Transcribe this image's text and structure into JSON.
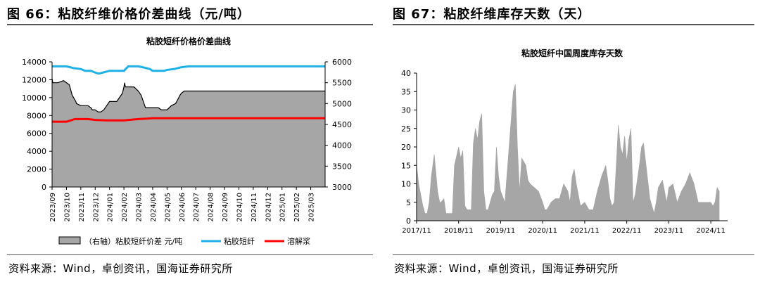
{
  "figures": [
    {
      "title": "图 66：粘胶纤维价格价差曲线（元/吨）",
      "source": "资料来源：Wind，卓创资讯，国海证券研究所"
    },
    {
      "title": "图 67：粘胶纤维库存天数（天）",
      "source": "资料来源：Wind，卓创资讯，国海证券研究所"
    }
  ],
  "chart_data": [
    {
      "type": "area",
      "title": "粘胶短纤价格价差曲线",
      "xlabel": "",
      "ylabel": "",
      "categories": [
        "2023/09",
        "2023/10",
        "2023/11",
        "2023/12",
        "2024/01",
        "2024/02",
        "2024/03",
        "2024/04",
        "2024/05",
        "2024/06",
        "2024/07",
        "2024/08",
        "2024/09",
        "2024/10",
        "2024/11",
        "2024/12",
        "2025/01",
        "2025/02",
        "2025/03"
      ],
      "x_range": [
        0,
        19
      ],
      "ylim": [
        0,
        14000
      ],
      "yticks": [
        0,
        2000,
        4000,
        6000,
        8000,
        10000,
        12000,
        14000
      ],
      "y2lim": [
        3000,
        6000
      ],
      "y2ticks": [
        3000,
        3500,
        4000,
        4500,
        5000,
        5500,
        6000
      ],
      "legend_position": "bottom",
      "grid": false,
      "series": [
        {
          "name": "（右轴）粘胶短纤价差  元/吨",
          "axis": "right",
          "style": "area",
          "color": "#a6a6a6",
          "x": [
            0,
            0.05,
            0.4,
            0.8,
            1.0,
            1.2,
            1.4,
            1.65,
            1.7,
            2.0,
            2.2,
            2.5,
            2.7,
            2.8,
            3.0,
            3.2,
            3.4,
            3.6,
            3.8,
            4.0,
            4.5,
            4.9,
            5.0,
            5.05,
            5.1,
            5.4,
            5.7,
            6.0,
            6.2,
            6.4,
            6.5,
            6.8,
            7.0,
            7.4,
            7.6,
            8.0,
            8.3,
            8.6,
            8.9,
            9.0,
            9.2,
            9.4,
            10.0,
            11.0,
            12.0,
            13.0,
            14.0,
            15.0,
            16.0,
            17.0,
            18.0,
            19.0
          ],
          "values": [
            5600,
            5500,
            5500,
            5550,
            5500,
            5450,
            5200,
            5050,
            5000,
            4950,
            4950,
            4950,
            4900,
            4850,
            4850,
            4800,
            4800,
            4850,
            4950,
            5050,
            5050,
            5250,
            5400,
            5500,
            5400,
            5400,
            5400,
            5300,
            5200,
            5000,
            4900,
            4900,
            4900,
            4900,
            4850,
            4850,
            4950,
            5000,
            5200,
            5250,
            5300,
            5300,
            5300,
            5300,
            5300,
            5300,
            5300,
            5300,
            5300,
            5300,
            5300,
            5300
          ]
        },
        {
          "name": "粘胶短纤",
          "axis": "left",
          "style": "line",
          "color": "#1fb1e6",
          "x": [
            0,
            1.0,
            1.5,
            2.0,
            2.3,
            2.7,
            3.0,
            3.2,
            3.3,
            4.0,
            5.0,
            5.3,
            6.0,
            6.3,
            6.8,
            7.0,
            7.4,
            7.8,
            8.0,
            8.5,
            9.0,
            9.5,
            10.0,
            11.0,
            12.0,
            13.0,
            14.0,
            15.0,
            16.0,
            17.0,
            18.0,
            19.0
          ],
          "values": [
            13500,
            13500,
            13300,
            13200,
            13000,
            13000,
            12800,
            12700,
            12700,
            13000,
            13000,
            13500,
            13500,
            13400,
            13200,
            13000,
            13000,
            13000,
            13100,
            13200,
            13400,
            13500,
            13500,
            13500,
            13500,
            13500,
            13500,
            13500,
            13500,
            13500,
            13500,
            13500
          ]
        },
        {
          "name": "溶解浆",
          "axis": "left",
          "style": "line",
          "color": "#ff0000",
          "x": [
            0,
            1.0,
            1.6,
            2.5,
            3.0,
            3.8,
            4.2,
            5.0,
            6.0,
            6.6,
            7.0,
            8.0,
            9.0,
            10.0,
            11.0,
            12.0,
            13.0,
            14.0,
            15.0,
            16.0,
            17.0,
            18.0,
            19.0
          ],
          "values": [
            7300,
            7300,
            7600,
            7600,
            7500,
            7450,
            7450,
            7450,
            7600,
            7650,
            7700,
            7700,
            7700,
            7700,
            7700,
            7700,
            7700,
            7700,
            7700,
            7700,
            7700,
            7700,
            7700
          ]
        }
      ]
    },
    {
      "type": "area",
      "title": "粘胶短纤中国周度库存天数",
      "xlabel": "",
      "ylabel": "",
      "categories": [
        "2017/11",
        "2018/11",
        "2019/11",
        "2020/11",
        "2021/11",
        "2022/11",
        "2023/11",
        "2024/11"
      ],
      "x_range": [
        0,
        7.4
      ],
      "ylim": [
        0,
        40
      ],
      "yticks": [
        0,
        5,
        10,
        15,
        20,
        25,
        30,
        35,
        40
      ],
      "legend_position": "none",
      "grid": false,
      "series": [
        {
          "name": "",
          "color": "#a6a6a6",
          "x": [
            0,
            0.05,
            0.1,
            0.15,
            0.2,
            0.25,
            0.3,
            0.35,
            0.42,
            0.5,
            0.55,
            0.58,
            0.65,
            0.7,
            0.75,
            0.85,
            0.9,
            1.0,
            1.05,
            1.1,
            1.15,
            1.2,
            1.3,
            1.35,
            1.4,
            1.45,
            1.5,
            1.55,
            1.6,
            1.65,
            1.7,
            1.75,
            1.8,
            1.85,
            1.9,
            1.95,
            2.0,
            2.1,
            2.2,
            2.3,
            2.35,
            2.4,
            2.45,
            2.5,
            2.6,
            2.65,
            2.7,
            2.8,
            2.9,
            3.0,
            3.05,
            3.1,
            3.2,
            3.3,
            3.4,
            3.5,
            3.6,
            3.65,
            3.7,
            3.75,
            3.8,
            3.9,
            4.0,
            4.1,
            4.15,
            4.2,
            4.3,
            4.4,
            4.5,
            4.55,
            4.6,
            4.65,
            4.7,
            4.75,
            4.8,
            4.85,
            4.9,
            4.95,
            5.0,
            5.05,
            5.1,
            5.15,
            5.2,
            5.3,
            5.35,
            5.4,
            5.5,
            5.55,
            5.6,
            5.65,
            5.7,
            5.75,
            5.8,
            5.85,
            5.9,
            5.95,
            6.0,
            6.1,
            6.2,
            6.3,
            6.4,
            6.5,
            6.6,
            6.7,
            6.8,
            6.9,
            7.0,
            7.05,
            7.1,
            7.15,
            7.2
          ],
          "values": [
            15,
            10,
            7,
            4,
            2,
            2,
            5,
            12,
            18,
            8,
            5,
            5,
            6,
            2,
            2,
            2,
            15,
            20,
            17,
            19,
            4,
            3,
            3,
            21,
            25,
            22,
            27,
            29,
            8,
            3,
            3,
            5,
            7,
            8,
            20,
            12,
            8,
            5,
            20,
            35,
            37,
            20,
            8,
            17,
            15,
            11,
            10,
            9,
            8,
            5,
            3,
            3,
            5,
            6,
            6,
            10,
            8,
            5,
            12,
            14,
            10,
            4,
            5,
            3,
            3,
            3,
            8,
            12,
            15,
            11,
            6,
            4,
            5,
            15,
            26,
            20,
            18,
            23,
            16,
            22,
            25,
            5,
            7,
            15,
            20,
            21,
            11,
            6,
            4,
            2,
            5,
            9,
            10,
            11,
            8,
            5,
            9,
            10,
            5,
            8,
            10,
            13,
            10,
            5,
            5,
            5,
            5,
            4,
            5,
            9,
            8
          ]
        }
      ]
    }
  ]
}
